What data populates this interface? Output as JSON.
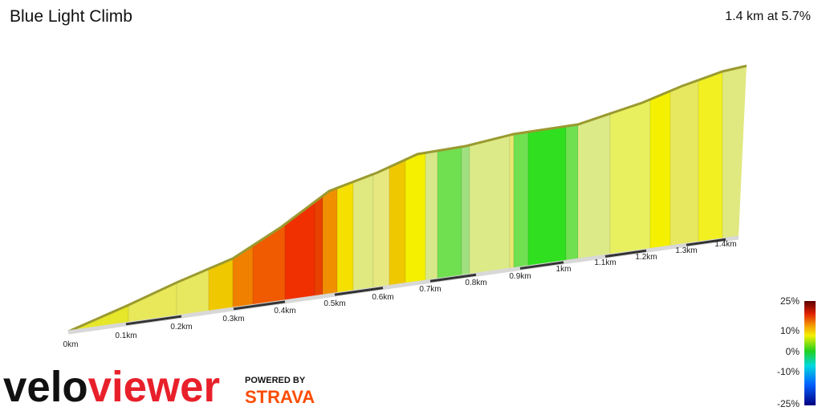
{
  "header": {
    "title": "Blue Light Climb",
    "summary": "1.4 km at 5.7%"
  },
  "distance_labels": [
    "0km",
    "0.1km",
    "0.2km",
    "0.3km",
    "0.4km",
    "0.5km",
    "0.6km",
    "0.7km",
    "0.8km",
    "0.9km",
    "1km",
    "1.1km",
    "1.2km",
    "1.3km",
    "1.4km"
  ],
  "legend_labels": [
    "25%",
    "10%",
    "0%",
    "-10%",
    "-25%"
  ],
  "logo": {
    "part1": "velo",
    "part2": "viewer",
    "powered_by": "POWERED BY",
    "strava": "STRAVA"
  }
}
